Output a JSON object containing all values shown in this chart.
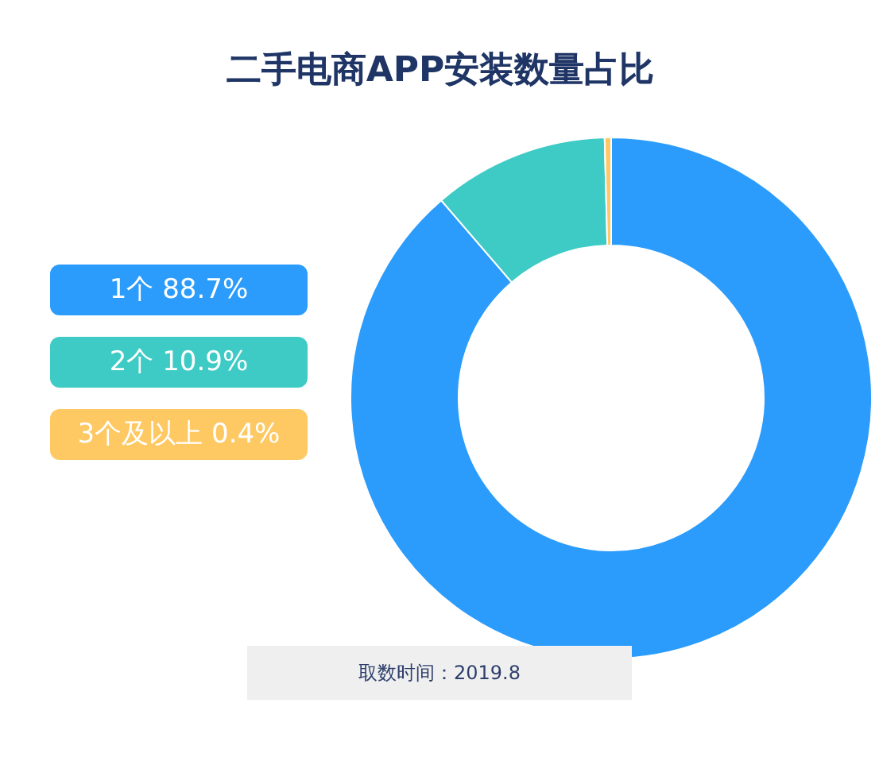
{
  "chart_data": {
    "type": "donut",
    "title": "二手电商APP安装数量占比",
    "categories": [
      "1个",
      "2个",
      "3个及以上"
    ],
    "values": [
      88.7,
      10.9,
      0.4
    ],
    "value_labels": [
      "88.7%",
      "10.9%",
      "0.4%"
    ],
    "colors": [
      "#2b9cfc",
      "#3ecbc5",
      "#fec862"
    ],
    "legend": "left",
    "annotations": [
      "取数时间：2019.8"
    ]
  }
}
